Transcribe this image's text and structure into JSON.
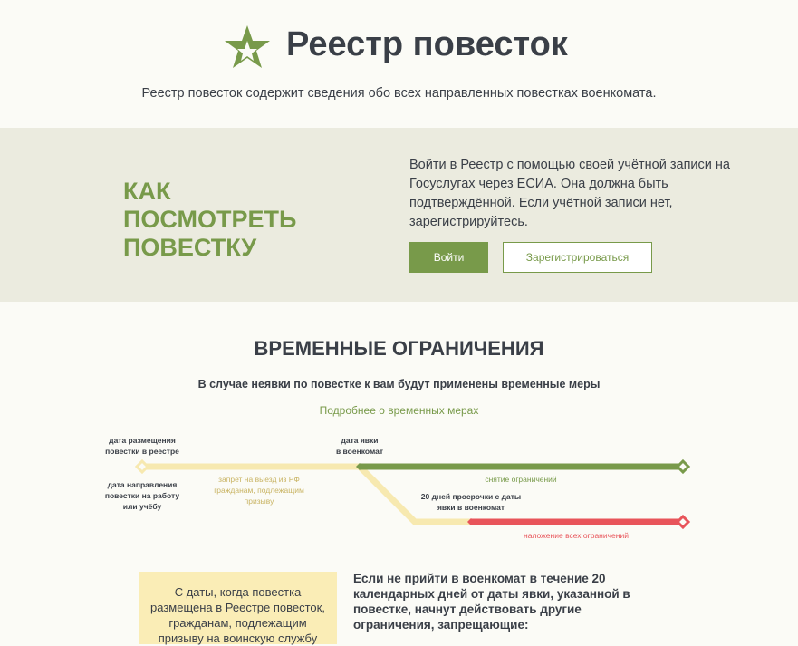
{
  "header": {
    "title": "Реестр повесток",
    "subtitle": "Реестр повесток содержит сведения обо всех направленных повестках военкомата.",
    "logo_icon": "star-icon"
  },
  "howto": {
    "heading_lines": [
      "КАК",
      "ПОСМОТРЕТЬ",
      "ПОВЕСТКУ"
    ],
    "text": "Войти в Реестр с помощью своей учётной записи на Госуслугах через ЕСИА. Она должна быть подтверждённой. Если учётной записи нет, зарегистрируйтесь.",
    "login_label": "Войти",
    "register_label": "Зарегистрироваться"
  },
  "restrictions": {
    "title": "ВРЕМЕННЫЕ ОГРАНИЧЕНИЯ",
    "subtitle": "В случае неявки по повестке к вам будут применены временные меры",
    "more_link": "Подробнее о временных мерах",
    "timeline": {
      "start_top": [
        "дата размещения",
        "повестки в реестре"
      ],
      "start_bottom": [
        "дата направления",
        "повестки на работу",
        "или учёбу"
      ],
      "ban": [
        "запрет на выезд из РФ",
        "гражданам, подлежащим",
        "призыву"
      ],
      "appear": [
        "дата явки",
        "в военкомат"
      ],
      "lifted": "снятие ограничений",
      "overdue": [
        "20 дней просрочки с даты",
        "явки в военкомат"
      ],
      "all": "наложение всех ограничений"
    },
    "box_text": [
      "С даты, когда повестка",
      "размещена в Реестре повесток,",
      "гражданам, подлежащим",
      "призыву на воинскую службу"
    ],
    "right_text": "Если не прийти в военкомат в течение 20 календарных дней от даты явки, указанной в повестке, начнут действовать другие ограничения, запрещающие:"
  },
  "colors": {
    "accent": "#789a4a",
    "yellow": "#f7e9b0",
    "red": "#e8545a",
    "band": "#ebebdf"
  }
}
